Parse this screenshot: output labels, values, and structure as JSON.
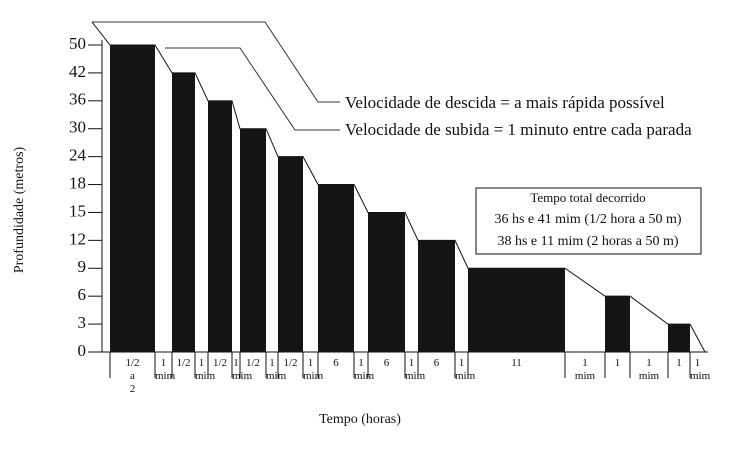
{
  "chart_data": {
    "type": "bar",
    "x_label": "Tempo (horas)",
    "y_label": "Profundidade (metros)",
    "categories": [
      "1/2 a 2",
      "1 mim",
      "1/2",
      "1 mim",
      "1/2",
      "1 mim",
      "1/2",
      "1 mim",
      "1/2",
      "1 mim",
      "6",
      "1 mim",
      "6",
      "1 mim",
      "6",
      "1 mim",
      "11",
      "1 mim",
      "1",
      "1 mim",
      "1",
      "1 mim"
    ],
    "values": [
      50,
      null,
      42,
      null,
      36,
      null,
      30,
      null,
      24,
      null,
      18,
      null,
      15,
      null,
      12,
      null,
      9,
      null,
      6,
      null,
      3,
      null
    ],
    "color": "#151515",
    "ylim": [
      0,
      50
    ],
    "yticks": [
      0,
      3,
      6,
      9,
      12,
      15,
      18,
      24,
      30,
      36,
      42,
      50
    ],
    "annotations": [
      "Velocidade de descida = a mais rápida possível",
      "Velocidade de subida = 1 minuto entre cada parada"
    ],
    "box": {
      "title": "Tempo total decorrido",
      "lines": [
        "36 hs e 41 mim (1/2 hora a 50 m)",
        "38 hs e 11 mim (2 horas a 50 m)"
      ]
    }
  }
}
